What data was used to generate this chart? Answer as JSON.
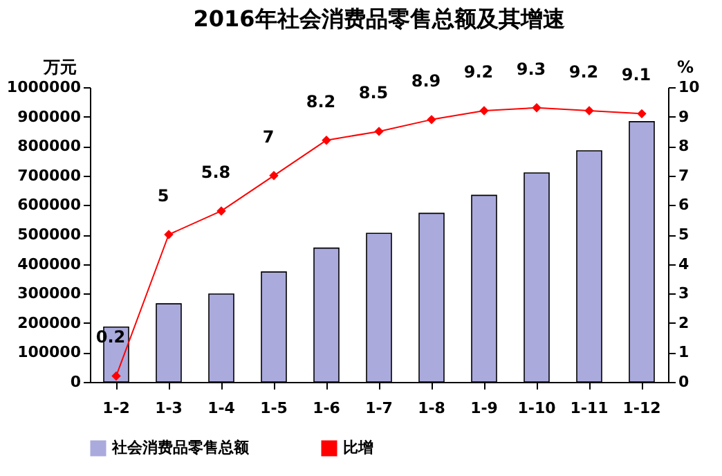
{
  "chart_data": {
    "type": "bar",
    "title": "2016年社会消费品零售总额及其增速",
    "ylabel": "万元",
    "y2label": "%",
    "categories": [
      "1-2",
      "1-3",
      "1-4",
      "1-5",
      "1-6",
      "1-7",
      "1-8",
      "1-9",
      "1-10",
      "1-11",
      "1-12"
    ],
    "series": [
      {
        "name": "社会消费品零售总额",
        "color": "#aaaadd",
        "values": [
          186000,
          265000,
          298000,
          373000,
          454000,
          504000,
          572000,
          633000,
          709000,
          784000,
          883000
        ]
      },
      {
        "name": "比增",
        "type": "line",
        "axis": "y2",
        "color": "#ff0000",
        "values": [
          0.2,
          5,
          5.8,
          7,
          8.2,
          8.5,
          8.9,
          9.2,
          9.3,
          9.2,
          9.1
        ],
        "value_labels": [
          "0.2",
          "5",
          "5.8",
          "7",
          "8.2",
          "8.5",
          "8.9",
          "9.2",
          "9.3",
          "9.2",
          "9.1"
        ]
      }
    ],
    "ylim": [
      0,
      1000000
    ],
    "yticks": [
      0,
      100000,
      200000,
      300000,
      400000,
      500000,
      600000,
      700000,
      800000,
      900000,
      1000000
    ],
    "y2lim": [
      0,
      10
    ],
    "y2ticks": [
      0,
      1,
      2,
      3,
      4,
      5,
      6,
      7,
      8,
      9,
      10
    ],
    "grid": false,
    "legend": "bottom",
    "marker": "diamond"
  }
}
